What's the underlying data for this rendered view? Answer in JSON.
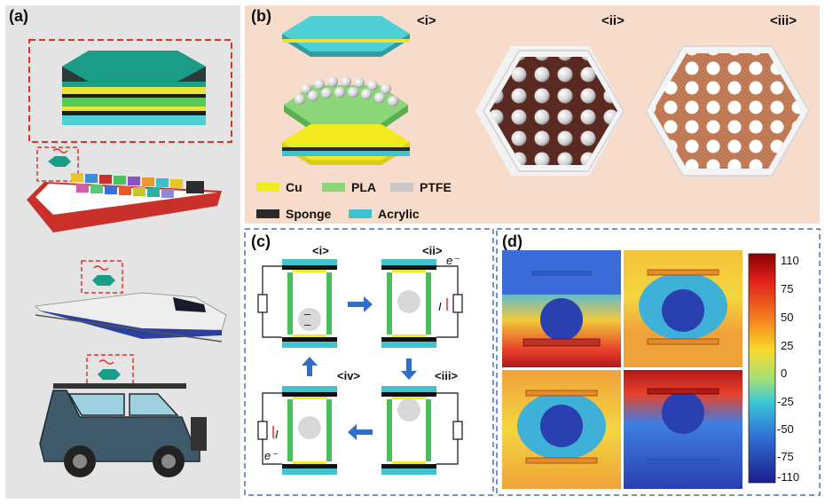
{
  "panels": {
    "a": {
      "label": "(a)"
    },
    "b": {
      "label": "(b)",
      "sub_labels": [
        "<i>",
        "<ii>",
        "<iii>"
      ]
    },
    "c": {
      "label": "(c)",
      "sub_labels": [
        "<i>",
        "<ii>",
        "<iii>",
        "<iv>"
      ],
      "electron": "e⁻",
      "current": "I"
    },
    "d": {
      "label": "(d)"
    }
  },
  "legend": [
    {
      "label": "Cu",
      "color": "#f2ea1c"
    },
    {
      "label": "PLA",
      "color": "#8cd67a"
    },
    {
      "label": "PTFE",
      "color": "#c8c8c8"
    },
    {
      "label": "Sponge",
      "color": "#2a2a2a"
    },
    {
      "label": "Acrylic",
      "color": "#3fc4cf"
    }
  ],
  "colorbar": {
    "ticks": [
      "110",
      "75",
      "50",
      "25",
      "0",
      "-25",
      "-50",
      "-75",
      "-110"
    ]
  },
  "vehicles": [
    "ship-icon",
    "train-icon",
    "suv-icon"
  ]
}
